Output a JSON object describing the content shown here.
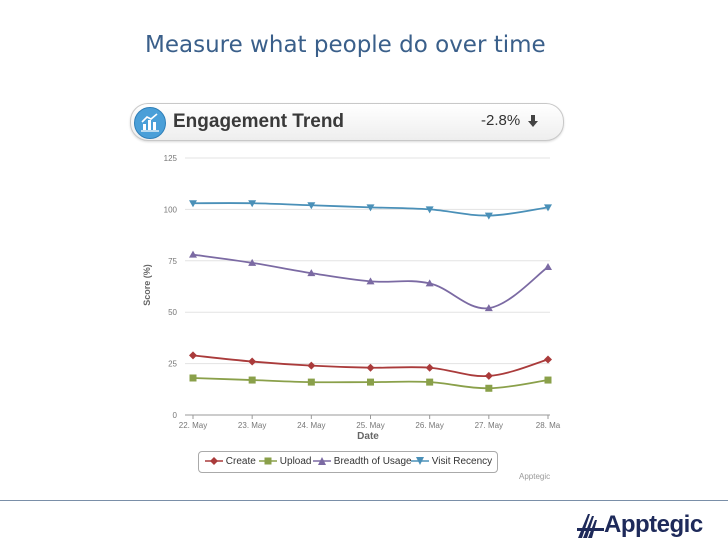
{
  "slide": {
    "title": "Measure what people do over time"
  },
  "widget": {
    "title": "Engagement Trend",
    "change": "-2.8%",
    "icon": "bar-chart-icon",
    "arrow_icon": "down-arrow-icon"
  },
  "chart_data": {
    "type": "line",
    "title": "",
    "xlabel": "Date",
    "ylabel": "Score (%)",
    "ylim": [
      0,
      125
    ],
    "yticks": [
      "0",
      "25",
      "50",
      "75",
      "100",
      "125"
    ],
    "categories": [
      "22. May",
      "23. May",
      "24. May",
      "25. May",
      "26. May",
      "27. May",
      "28. Ma"
    ],
    "grid": "horizontal",
    "legend_position": "bottom",
    "series": [
      {
        "name": "Create",
        "color": "#aa3b3b",
        "marker": "diamond",
        "values": [
          29,
          26,
          24,
          23,
          23,
          19,
          27
        ]
      },
      {
        "name": "Upload",
        "color": "#8aa04a",
        "marker": "square",
        "values": [
          18,
          17,
          16,
          16,
          16,
          13,
          17
        ]
      },
      {
        "name": "Breadth of Usage",
        "color": "#7b6aa3",
        "marker": "triangle",
        "values": [
          78,
          74,
          69,
          65,
          64,
          52,
          72
        ]
      },
      {
        "name": "Visit Recency",
        "color": "#4a90b8",
        "marker": "triangle-down",
        "values": [
          103,
          103,
          102,
          101,
          100,
          97,
          101
        ]
      }
    ]
  },
  "credit": "Apptegic",
  "brand": {
    "name": "Apptegic",
    "logo_icon": "apptegic-logo-icon"
  }
}
